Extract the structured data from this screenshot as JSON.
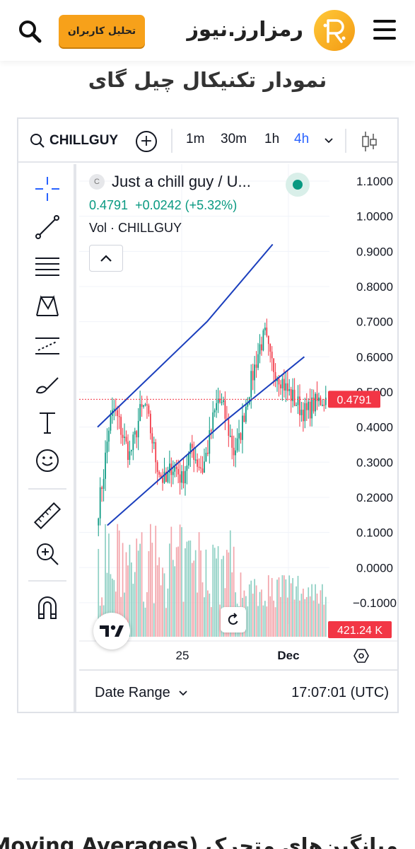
{
  "header": {
    "logo_text": "رمزارز.نیوز",
    "cta_label": "تحلیل کاربران",
    "page_title": "نمودار تکنیکال چیل گای"
  },
  "toolbar": {
    "symbol": "CHILLGUY",
    "intervals": [
      "1m",
      "30m",
      "1h",
      "4h"
    ],
    "active_interval": "4h"
  },
  "legend": {
    "name": "Just a chill guy / U...",
    "logo_letter": "C",
    "price": "0.4791",
    "change": "+0.0242 (+5.32%)",
    "volume_label": "Vol · CHILLGUY"
  },
  "chart_data": {
    "type": "candlestick",
    "price_axis_ticks": [
      "1.1000",
      "1.0000",
      "0.9000",
      "0.8000",
      "0.7000",
      "0.6000",
      "0.5000",
      "0.4000",
      "0.3000",
      "0.2000",
      "0.1000",
      "0.0000",
      "−0.1000"
    ],
    "ylim": [
      -0.1,
      1.1
    ],
    "time_axis_ticks": [
      "25",
      "Dec"
    ],
    "last_price": "0.4791",
    "last_volume": "421.24 K",
    "colors": {
      "up": "#089981",
      "down": "#f23645",
      "up_vol": "#8fd0c4",
      "down_vol": "#f3a5ab",
      "channel": "#1b3fbd"
    },
    "close_path": [
      0.17,
      0.27,
      0.4,
      0.45,
      0.41,
      0.36,
      0.32,
      0.37,
      0.44,
      0.46,
      0.39,
      0.31,
      0.26,
      0.24,
      0.29,
      0.28,
      0.25,
      0.3,
      0.34,
      0.3,
      0.28,
      0.34,
      0.42,
      0.48,
      0.45,
      0.39,
      0.33,
      0.36,
      0.44,
      0.51,
      0.57,
      0.63,
      0.66,
      0.59,
      0.56,
      0.54,
      0.51,
      0.49,
      0.47,
      0.45,
      0.44,
      0.46,
      0.47,
      0.48
    ],
    "channel_upper": [
      [
        0.0,
        0.4
      ],
      [
        0.45,
        0.7
      ],
      [
        0.72,
        0.92
      ]
    ],
    "channel_lower": [
      [
        0.04,
        0.12
      ],
      [
        0.53,
        0.42
      ],
      [
        0.85,
        0.6
      ]
    ]
  },
  "footer": {
    "date_range_label": "Date Range",
    "clock": "17:07:01 (UTC)"
  },
  "article": {
    "next_heading": "میانگین‌های متحرک (Moving Averages)"
  }
}
